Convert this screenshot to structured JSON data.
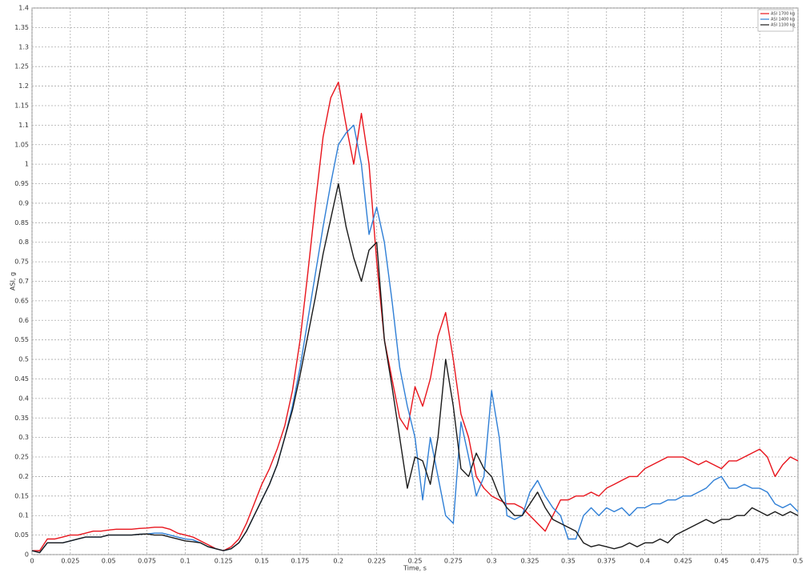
{
  "chart_data": {
    "type": "line",
    "x_label": "Time, s",
    "y_label": "ASI, g",
    "x": [
      0,
      0.005,
      0.01,
      0.015,
      0.02,
      0.025,
      0.03,
      0.035,
      0.04,
      0.045,
      0.05,
      0.055,
      0.06,
      0.065,
      0.07,
      0.075,
      0.08,
      0.085,
      0.09,
      0.095,
      0.1,
      0.105,
      0.11,
      0.115,
      0.12,
      0.125,
      0.13,
      0.135,
      0.14,
      0.145,
      0.15,
      0.155,
      0.16,
      0.165,
      0.17,
      0.175,
      0.18,
      0.185,
      0.19,
      0.195,
      0.2,
      0.205,
      0.21,
      0.215,
      0.22,
      0.225,
      0.23,
      0.235,
      0.24,
      0.245,
      0.25,
      0.255,
      0.26,
      0.265,
      0.27,
      0.275,
      0.28,
      0.285,
      0.29,
      0.295,
      0.3,
      0.305,
      0.31,
      0.315,
      0.32,
      0.325,
      0.33,
      0.335,
      0.34,
      0.345,
      0.35,
      0.355,
      0.36,
      0.365,
      0.37,
      0.375,
      0.38,
      0.385,
      0.39,
      0.395,
      0.4,
      0.405,
      0.41,
      0.415,
      0.42,
      0.425,
      0.43,
      0.435,
      0.44,
      0.445,
      0.45,
      0.455,
      0.46,
      0.465,
      0.47,
      0.475,
      0.48,
      0.485,
      0.49,
      0.495,
      0.5
    ],
    "series": [
      {
        "name": "ASI 1700 kg",
        "color": "#e8141c",
        "values": [
          0.01,
          0.01,
          0.04,
          0.04,
          0.045,
          0.05,
          0.05,
          0.055,
          0.06,
          0.06,
          0.063,
          0.065,
          0.065,
          0.065,
          0.067,
          0.068,
          0.07,
          0.07,
          0.065,
          0.055,
          0.05,
          0.045,
          0.035,
          0.025,
          0.015,
          0.01,
          0.02,
          0.04,
          0.08,
          0.13,
          0.18,
          0.22,
          0.27,
          0.33,
          0.42,
          0.55,
          0.72,
          0.9,
          1.07,
          1.17,
          1.21,
          1.1,
          1.0,
          1.13,
          1.0,
          0.75,
          0.55,
          0.45,
          0.35,
          0.32,
          0.43,
          0.38,
          0.45,
          0.56,
          0.62,
          0.5,
          0.36,
          0.3,
          0.2,
          0.17,
          0.15,
          0.14,
          0.13,
          0.13,
          0.12,
          0.1,
          0.08,
          0.06,
          0.1,
          0.14,
          0.14,
          0.15,
          0.15,
          0.16,
          0.15,
          0.17,
          0.18,
          0.19,
          0.2,
          0.2,
          0.22,
          0.23,
          0.24,
          0.25,
          0.25,
          0.25,
          0.24,
          0.23,
          0.24,
          0.23,
          0.22,
          0.24,
          0.24,
          0.25,
          0.26,
          0.27,
          0.25,
          0.2,
          0.23,
          0.25,
          0.24
        ]
      },
      {
        "name": "ASI 1400 kg",
        "color": "#2f7fd6",
        "values": [
          0.01,
          0.005,
          0.03,
          0.03,
          0.03,
          0.035,
          0.04,
          0.045,
          0.045,
          0.045,
          0.05,
          0.05,
          0.05,
          0.05,
          0.052,
          0.053,
          0.055,
          0.055,
          0.05,
          0.045,
          0.04,
          0.038,
          0.03,
          0.02,
          0.015,
          0.01,
          0.015,
          0.03,
          0.06,
          0.1,
          0.14,
          0.18,
          0.23,
          0.3,
          0.38,
          0.48,
          0.6,
          0.72,
          0.84,
          0.95,
          1.05,
          1.08,
          1.1,
          1.0,
          0.82,
          0.89,
          0.8,
          0.65,
          0.48,
          0.38,
          0.3,
          0.14,
          0.3,
          0.2,
          0.1,
          0.08,
          0.34,
          0.25,
          0.15,
          0.2,
          0.42,
          0.3,
          0.1,
          0.09,
          0.1,
          0.16,
          0.19,
          0.15,
          0.12,
          0.1,
          0.04,
          0.04,
          0.1,
          0.12,
          0.1,
          0.12,
          0.11,
          0.12,
          0.1,
          0.12,
          0.12,
          0.13,
          0.13,
          0.14,
          0.14,
          0.15,
          0.15,
          0.16,
          0.17,
          0.19,
          0.2,
          0.17,
          0.17,
          0.18,
          0.17,
          0.17,
          0.16,
          0.13,
          0.12,
          0.13,
          0.11
        ]
      },
      {
        "name": "ASI 1100 kg",
        "color": "#1a1a1a",
        "values": [
          0.01,
          0.005,
          0.03,
          0.03,
          0.03,
          0.035,
          0.04,
          0.045,
          0.045,
          0.045,
          0.05,
          0.05,
          0.05,
          0.05,
          0.052,
          0.053,
          0.05,
          0.05,
          0.045,
          0.04,
          0.035,
          0.033,
          0.03,
          0.02,
          0.015,
          0.01,
          0.015,
          0.03,
          0.06,
          0.1,
          0.14,
          0.18,
          0.23,
          0.3,
          0.37,
          0.46,
          0.56,
          0.66,
          0.77,
          0.86,
          0.95,
          0.84,
          0.76,
          0.7,
          0.78,
          0.8,
          0.55,
          0.43,
          0.3,
          0.17,
          0.25,
          0.24,
          0.18,
          0.3,
          0.5,
          0.38,
          0.22,
          0.2,
          0.26,
          0.22,
          0.2,
          0.15,
          0.12,
          0.1,
          0.1,
          0.13,
          0.16,
          0.12,
          0.09,
          0.08,
          0.07,
          0.06,
          0.03,
          0.02,
          0.025,
          0.02,
          0.015,
          0.02,
          0.03,
          0.02,
          0.03,
          0.03,
          0.04,
          0.03,
          0.05,
          0.06,
          0.07,
          0.08,
          0.09,
          0.08,
          0.09,
          0.09,
          0.1,
          0.1,
          0.12,
          0.11,
          0.1,
          0.11,
          0.1,
          0.11,
          0.1
        ]
      }
    ],
    "xlim": [
      0,
      0.5
    ],
    "ylim": [
      0,
      1.4
    ],
    "xticks": [
      0,
      0.025,
      0.05,
      0.075,
      0.1,
      0.125,
      0.15,
      0.175,
      0.2,
      0.225,
      0.25,
      0.275,
      0.3,
      0.325,
      0.35,
      0.375,
      0.4,
      0.425,
      0.45,
      0.475,
      0.5
    ],
    "yticks": [
      0,
      0.05,
      0.1,
      0.15,
      0.2,
      0.25,
      0.3,
      0.35,
      0.4,
      0.45,
      0.5,
      0.55,
      0.6,
      0.65,
      0.7,
      0.75,
      0.8,
      0.85,
      0.9,
      0.95,
      1,
      1.05,
      1.1,
      1.15,
      1.2,
      1.25,
      1.3,
      1.35,
      1.4
    ],
    "grid": true,
    "legend": "upper right"
  }
}
